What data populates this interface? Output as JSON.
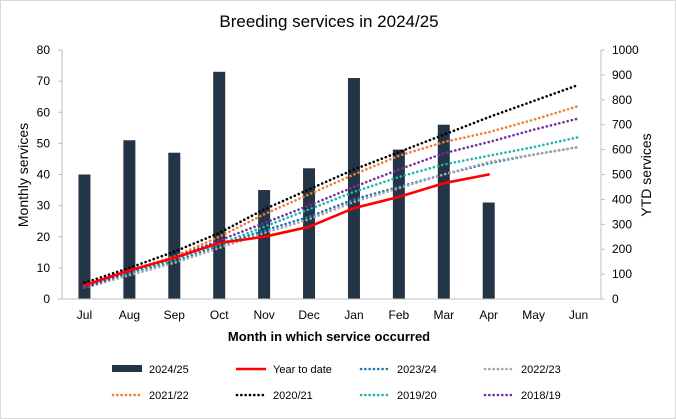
{
  "chart_data": {
    "type": "bar",
    "title": "Breeding services in 2024/25",
    "xlabel": "Month in which service occurred",
    "ylabel": "Monthly services",
    "y2label": "YTD services",
    "ylim": [
      0,
      80
    ],
    "yticks": [
      "0",
      "10",
      "20",
      "30",
      "40",
      "50",
      "60",
      "70",
      "80"
    ],
    "y2lim": [
      0,
      1000
    ],
    "y2ticks": [
      "0",
      "100",
      "200",
      "300",
      "400",
      "500",
      "600",
      "700",
      "800",
      "900",
      "1000"
    ],
    "categories": [
      "Jul",
      "Aug",
      "Sep",
      "Oct",
      "Nov",
      "Dec",
      "Jan",
      "Feb",
      "Mar",
      "Apr",
      "May",
      "Jun"
    ],
    "bars": {
      "name": "2024/25",
      "color": "#243447",
      "values": [
        40,
        51,
        47,
        73,
        35,
        42,
        71,
        48,
        56,
        31,
        null,
        null
      ]
    },
    "lines": [
      {
        "name": "Year to date",
        "color": "#ff0000",
        "style": "solid",
        "values": [
          55,
          115,
          165,
          225,
          250,
          290,
          365,
          410,
          465,
          500,
          null,
          null
        ]
      },
      {
        "name": "2023/24",
        "color": "#1f77b4",
        "style": "dotted",
        "values": [
          50,
          105,
          150,
          215,
          275,
          330,
          400,
          450,
          500,
          545,
          580,
          610
        ]
      },
      {
        "name": "2022/23",
        "color": "#a6a6a6",
        "style": "dotted",
        "values": [
          45,
          95,
          145,
          205,
          265,
          320,
          390,
          445,
          500,
          550,
          580,
          610
        ]
      },
      {
        "name": "2021/22",
        "color": "#ed7d31",
        "style": "dotted",
        "values": [
          55,
          115,
          170,
          250,
          340,
          420,
          500,
          575,
          630,
          670,
          720,
          775
        ]
      },
      {
        "name": "2020/21",
        "color": "#000000",
        "style": "dotted",
        "values": [
          65,
          125,
          190,
          265,
          360,
          440,
          520,
          590,
          660,
          730,
          795,
          860
        ]
      },
      {
        "name": "2019/20",
        "color": "#1cb5ac",
        "style": "dotted",
        "values": [
          45,
          105,
          160,
          220,
          290,
          360,
          430,
          490,
          540,
          575,
          610,
          650
        ]
      },
      {
        "name": "2018/19",
        "color": "#7030a0",
        "style": "dotted",
        "values": [
          45,
          110,
          165,
          235,
          305,
          375,
          450,
          520,
          585,
          630,
          680,
          725
        ]
      }
    ],
    "legend_position": "bottom"
  }
}
